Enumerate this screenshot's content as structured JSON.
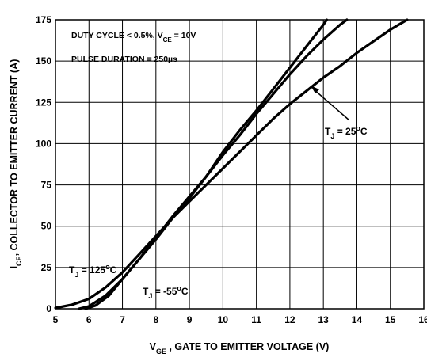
{
  "chart_data": {
    "type": "line",
    "xlabel": {
      "main": "V",
      "sub": "GE",
      "rest": " , GATE TO EMITTER VOLTAGE (V)"
    },
    "ylabel": {
      "main": "I",
      "sub": "CE",
      "rest": ", COLLECTOR TO EMITTER CURRENT (A)"
    },
    "xlim": [
      5,
      16
    ],
    "ylim": [
      0,
      175
    ],
    "xticks": [
      "5",
      "6",
      "7",
      "8",
      "9",
      "10",
      "11",
      "12",
      "13",
      "14",
      "15",
      "16"
    ],
    "yticks": [
      "0",
      "25",
      "50",
      "75",
      "100",
      "125",
      "150",
      "175"
    ],
    "grid": true,
    "notes": [
      {
        "a": "DUTY CYCLE < 0.5%, V",
        "sub": "CE",
        "b": " = 10V"
      },
      {
        "a": "PULSE DURATION = 250",
        "sub": "",
        "b": "µs"
      }
    ],
    "series": [
      {
        "name": {
          "a": "T",
          "sub": "J",
          "b": " = -55",
          "sup": "o",
          "c": "C"
        },
        "points": [
          [
            5.9,
            0
          ],
          [
            6.2,
            2
          ],
          [
            6.6,
            8
          ],
          [
            7,
            18
          ],
          [
            7.5,
            30
          ],
          [
            8,
            43
          ],
          [
            8.5,
            56
          ],
          [
            9,
            68
          ],
          [
            9.5,
            80
          ],
          [
            10,
            95
          ],
          [
            10.5,
            108
          ],
          [
            11,
            120
          ],
          [
            11.5,
            133
          ],
          [
            12,
            146
          ],
          [
            12.5,
            159
          ],
          [
            13,
            172
          ],
          [
            13.1,
            175
          ]
        ]
      },
      {
        "name": {
          "a": "T",
          "sub": "J",
          "b": " = 25",
          "sup": "o",
          "c": "C"
        },
        "points": [
          [
            5.7,
            0
          ],
          [
            6,
            1.5
          ],
          [
            6.5,
            8
          ],
          [
            7,
            18
          ],
          [
            7.5,
            30
          ],
          [
            8,
            42
          ],
          [
            8.5,
            55
          ],
          [
            9,
            67
          ],
          [
            9.5,
            80
          ],
          [
            10,
            93
          ],
          [
            10.5,
            105
          ],
          [
            11,
            118
          ],
          [
            11.5,
            130
          ],
          [
            12,
            142
          ],
          [
            12.5,
            153
          ],
          [
            13,
            163
          ],
          [
            13.5,
            172
          ],
          [
            13.7,
            175
          ]
        ]
      },
      {
        "name": {
          "a": "T",
          "sub": "J",
          "b": " = 125",
          "sup": "o",
          "c": "C"
        },
        "points": [
          [
            5,
            0.5
          ],
          [
            5.5,
            2.5
          ],
          [
            6,
            6
          ],
          [
            6.5,
            13
          ],
          [
            7,
            22
          ],
          [
            7.5,
            33
          ],
          [
            8,
            44
          ],
          [
            8.5,
            55
          ],
          [
            9,
            65
          ],
          [
            9.5,
            75
          ],
          [
            10,
            85
          ],
          [
            10.5,
            95
          ],
          [
            11,
            105
          ],
          [
            11.5,
            115
          ],
          [
            12,
            124
          ],
          [
            12.5,
            132
          ],
          [
            13,
            140
          ],
          [
            13.5,
            147
          ],
          [
            14,
            155
          ],
          [
            14.5,
            162
          ],
          [
            15,
            169
          ],
          [
            15.5,
            175
          ]
        ]
      }
    ]
  }
}
